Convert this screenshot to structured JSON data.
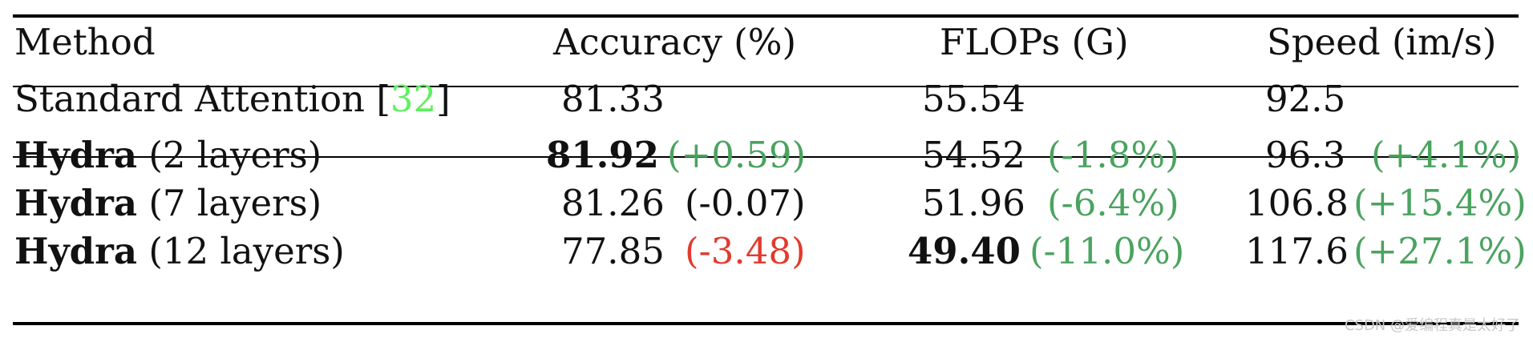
{
  "headers": {
    "method": "Method",
    "accuracy": "Accuracy (%)",
    "flops": "FLOPs (G)",
    "speed": "Speed (im/s)"
  },
  "baseline": {
    "method": "Standard Attention",
    "cite_open": "[",
    "cite": "32",
    "cite_close": "]",
    "accuracy": "81.33",
    "flops": "55.54",
    "speed": "92.5"
  },
  "rows": [
    {
      "method_bold": "Hydra",
      "method_rest": "(2 layers)",
      "accuracy": "81.92",
      "accuracy_delta": "(+0.59)",
      "flops": "54.52",
      "flops_delta": "(-1.8%)",
      "speed": "96.3",
      "speed_delta": "(+4.1%)"
    },
    {
      "method_bold": "Hydra",
      "method_rest": "(7 layers)",
      "accuracy": "81.26",
      "accuracy_delta": "(-0.07)",
      "flops": "51.96",
      "flops_delta": "(-6.4%)",
      "speed": "106.8",
      "speed_delta": "(+15.4%)"
    },
    {
      "method_bold": "Hydra",
      "method_rest": "(12 layers)",
      "accuracy": "77.85",
      "accuracy_delta": "(-3.48)",
      "flops": "49.40",
      "flops_delta": "(-11.0%)",
      "speed": "117.6",
      "speed_delta": "(+27.1%)"
    }
  ],
  "colors": {
    "positive": "#4aa35f",
    "negative": "#e23a2d",
    "citation": "#5ef05e"
  },
  "watermark": "CSDN @爱编程真是太好了"
}
